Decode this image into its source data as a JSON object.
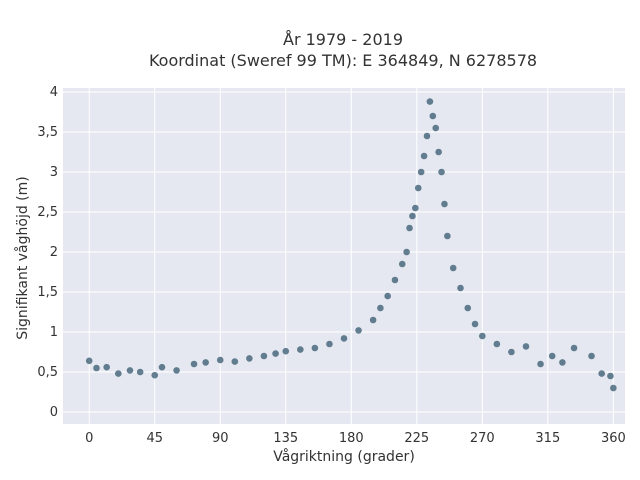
{
  "chart_data": {
    "type": "scatter",
    "title_line1": "År 1979 - 2019",
    "title_line2": "Koordinat (Sweref 99 TM): E 364849, N 6278578",
    "xlabel": "Vågriktning (grader)",
    "ylabel": "Signifikant våghöjd (m)",
    "xlim": [
      -18,
      368
    ],
    "ylim": [
      -0.15,
      4.05
    ],
    "xticks": [
      {
        "value": 0,
        "label": "0"
      },
      {
        "value": 45,
        "label": "45"
      },
      {
        "value": 90,
        "label": "90"
      },
      {
        "value": 135,
        "label": "135"
      },
      {
        "value": 180,
        "label": "180"
      },
      {
        "value": 225,
        "label": "225"
      },
      {
        "value": 270,
        "label": "270"
      },
      {
        "value": 315,
        "label": "315"
      },
      {
        "value": 360,
        "label": "360"
      }
    ],
    "yticks": [
      {
        "value": 0,
        "label": "0"
      },
      {
        "value": 0.5,
        "label": "0,5"
      },
      {
        "value": 1,
        "label": "1"
      },
      {
        "value": 1.5,
        "label": "1,5"
      },
      {
        "value": 2,
        "label": "2"
      },
      {
        "value": 2.5,
        "label": "2,5"
      },
      {
        "value": 3,
        "label": "3"
      },
      {
        "value": 3.5,
        "label": "3,5"
      },
      {
        "value": 4,
        "label": "4"
      }
    ],
    "grid": true,
    "marker_color": "#34586f",
    "background_color": "#e5e8f0",
    "series": [
      {
        "points": [
          [
            0,
            0.64
          ],
          [
            5,
            0.55
          ],
          [
            12,
            0.56
          ],
          [
            20,
            0.48
          ],
          [
            28,
            0.52
          ],
          [
            35,
            0.5
          ],
          [
            45,
            0.46
          ],
          [
            50,
            0.56
          ],
          [
            60,
            0.52
          ],
          [
            72,
            0.6
          ],
          [
            80,
            0.62
          ],
          [
            90,
            0.65
          ],
          [
            100,
            0.63
          ],
          [
            110,
            0.67
          ],
          [
            120,
            0.7
          ],
          [
            128,
            0.73
          ],
          [
            135,
            0.76
          ],
          [
            145,
            0.78
          ],
          [
            155,
            0.8
          ],
          [
            165,
            0.85
          ],
          [
            175,
            0.92
          ],
          [
            185,
            1.02
          ],
          [
            195,
            1.15
          ],
          [
            200,
            1.3
          ],
          [
            205,
            1.45
          ],
          [
            210,
            1.65
          ],
          [
            215,
            1.85
          ],
          [
            218,
            2.0
          ],
          [
            220,
            2.3
          ],
          [
            222,
            2.45
          ],
          [
            224,
            2.55
          ],
          [
            226,
            2.8
          ],
          [
            228,
            3.0
          ],
          [
            230,
            3.2
          ],
          [
            232,
            3.45
          ],
          [
            234,
            3.88
          ],
          [
            236,
            3.7
          ],
          [
            238,
            3.55
          ],
          [
            240,
            3.25
          ],
          [
            242,
            3.0
          ],
          [
            244,
            2.6
          ],
          [
            246,
            2.2
          ],
          [
            250,
            1.8
          ],
          [
            255,
            1.55
          ],
          [
            260,
            1.3
          ],
          [
            265,
            1.1
          ],
          [
            270,
            0.95
          ],
          [
            280,
            0.85
          ],
          [
            290,
            0.75
          ],
          [
            300,
            0.82
          ],
          [
            310,
            0.6
          ],
          [
            318,
            0.7
          ],
          [
            325,
            0.62
          ],
          [
            333,
            0.8
          ],
          [
            345,
            0.7
          ],
          [
            352,
            0.48
          ],
          [
            358,
            0.45
          ],
          [
            360,
            0.3
          ]
        ]
      }
    ]
  }
}
